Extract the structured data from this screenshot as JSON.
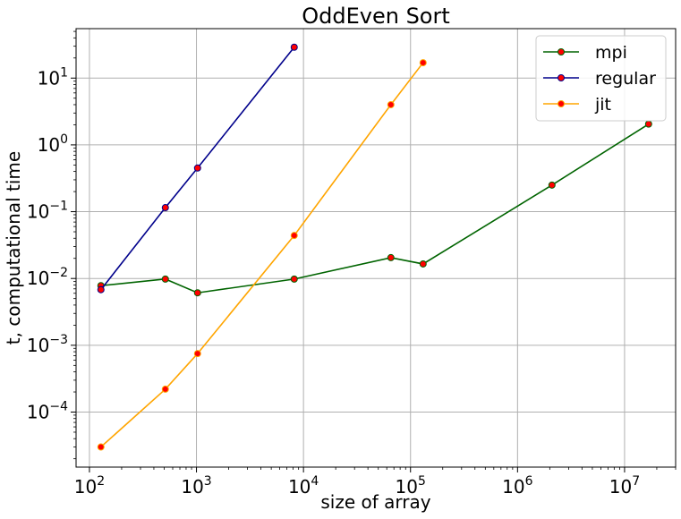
{
  "chart_data": {
    "type": "line",
    "title": "OddEven Sort",
    "xlabel": "size of array",
    "ylabel": "t, computational time",
    "x_scale": "log",
    "y_scale": "log",
    "xlim": [
      75,
      30000000
    ],
    "ylim": [
      1.5e-05,
      55
    ],
    "grid": true,
    "legend_position": "top-right",
    "x_ticks": [
      {
        "base": "10",
        "exp": "2",
        "value": 100
      },
      {
        "base": "10",
        "exp": "3",
        "value": 1000
      },
      {
        "base": "10",
        "exp": "4",
        "value": 10000
      },
      {
        "base": "10",
        "exp": "5",
        "value": 100000
      },
      {
        "base": "10",
        "exp": "6",
        "value": 1000000
      },
      {
        "base": "10",
        "exp": "7",
        "value": 10000000
      }
    ],
    "y_ticks": [
      {
        "base": "10",
        "exp": "−4",
        "value": 0.0001
      },
      {
        "base": "10",
        "exp": "−3",
        "value": 0.001
      },
      {
        "base": "10",
        "exp": "−2",
        "value": 0.01
      },
      {
        "base": "10",
        "exp": "−1",
        "value": 0.1
      },
      {
        "base": "10",
        "exp": "0",
        "value": 1
      },
      {
        "base": "10",
        "exp": "1",
        "value": 10
      }
    ],
    "series": [
      {
        "name": "mpi",
        "color": "#006400",
        "marker_face": "#ff0000",
        "marker_edge": "#006400",
        "x": [
          128,
          512,
          1024,
          8192,
          65536,
          131072,
          2097152,
          16777216
        ],
        "y": [
          0.0078,
          0.0098,
          0.0061,
          0.0098,
          0.0205,
          0.0165,
          0.25,
          2.05
        ]
      },
      {
        "name": "regular",
        "color": "#00008b",
        "marker_face": "#ff0000",
        "marker_edge": "#00008b",
        "x": [
          128,
          512,
          1024,
          8192
        ],
        "y": [
          0.0068,
          0.115,
          0.45,
          29
        ]
      },
      {
        "name": "jit",
        "color": "#ffa500",
        "marker_face": "#ff0000",
        "marker_edge": "#ffa500",
        "x": [
          128,
          512,
          1024,
          8192,
          65536,
          131072
        ],
        "y": [
          3e-05,
          0.00022,
          0.00075,
          0.044,
          4.0,
          17
        ]
      }
    ]
  }
}
